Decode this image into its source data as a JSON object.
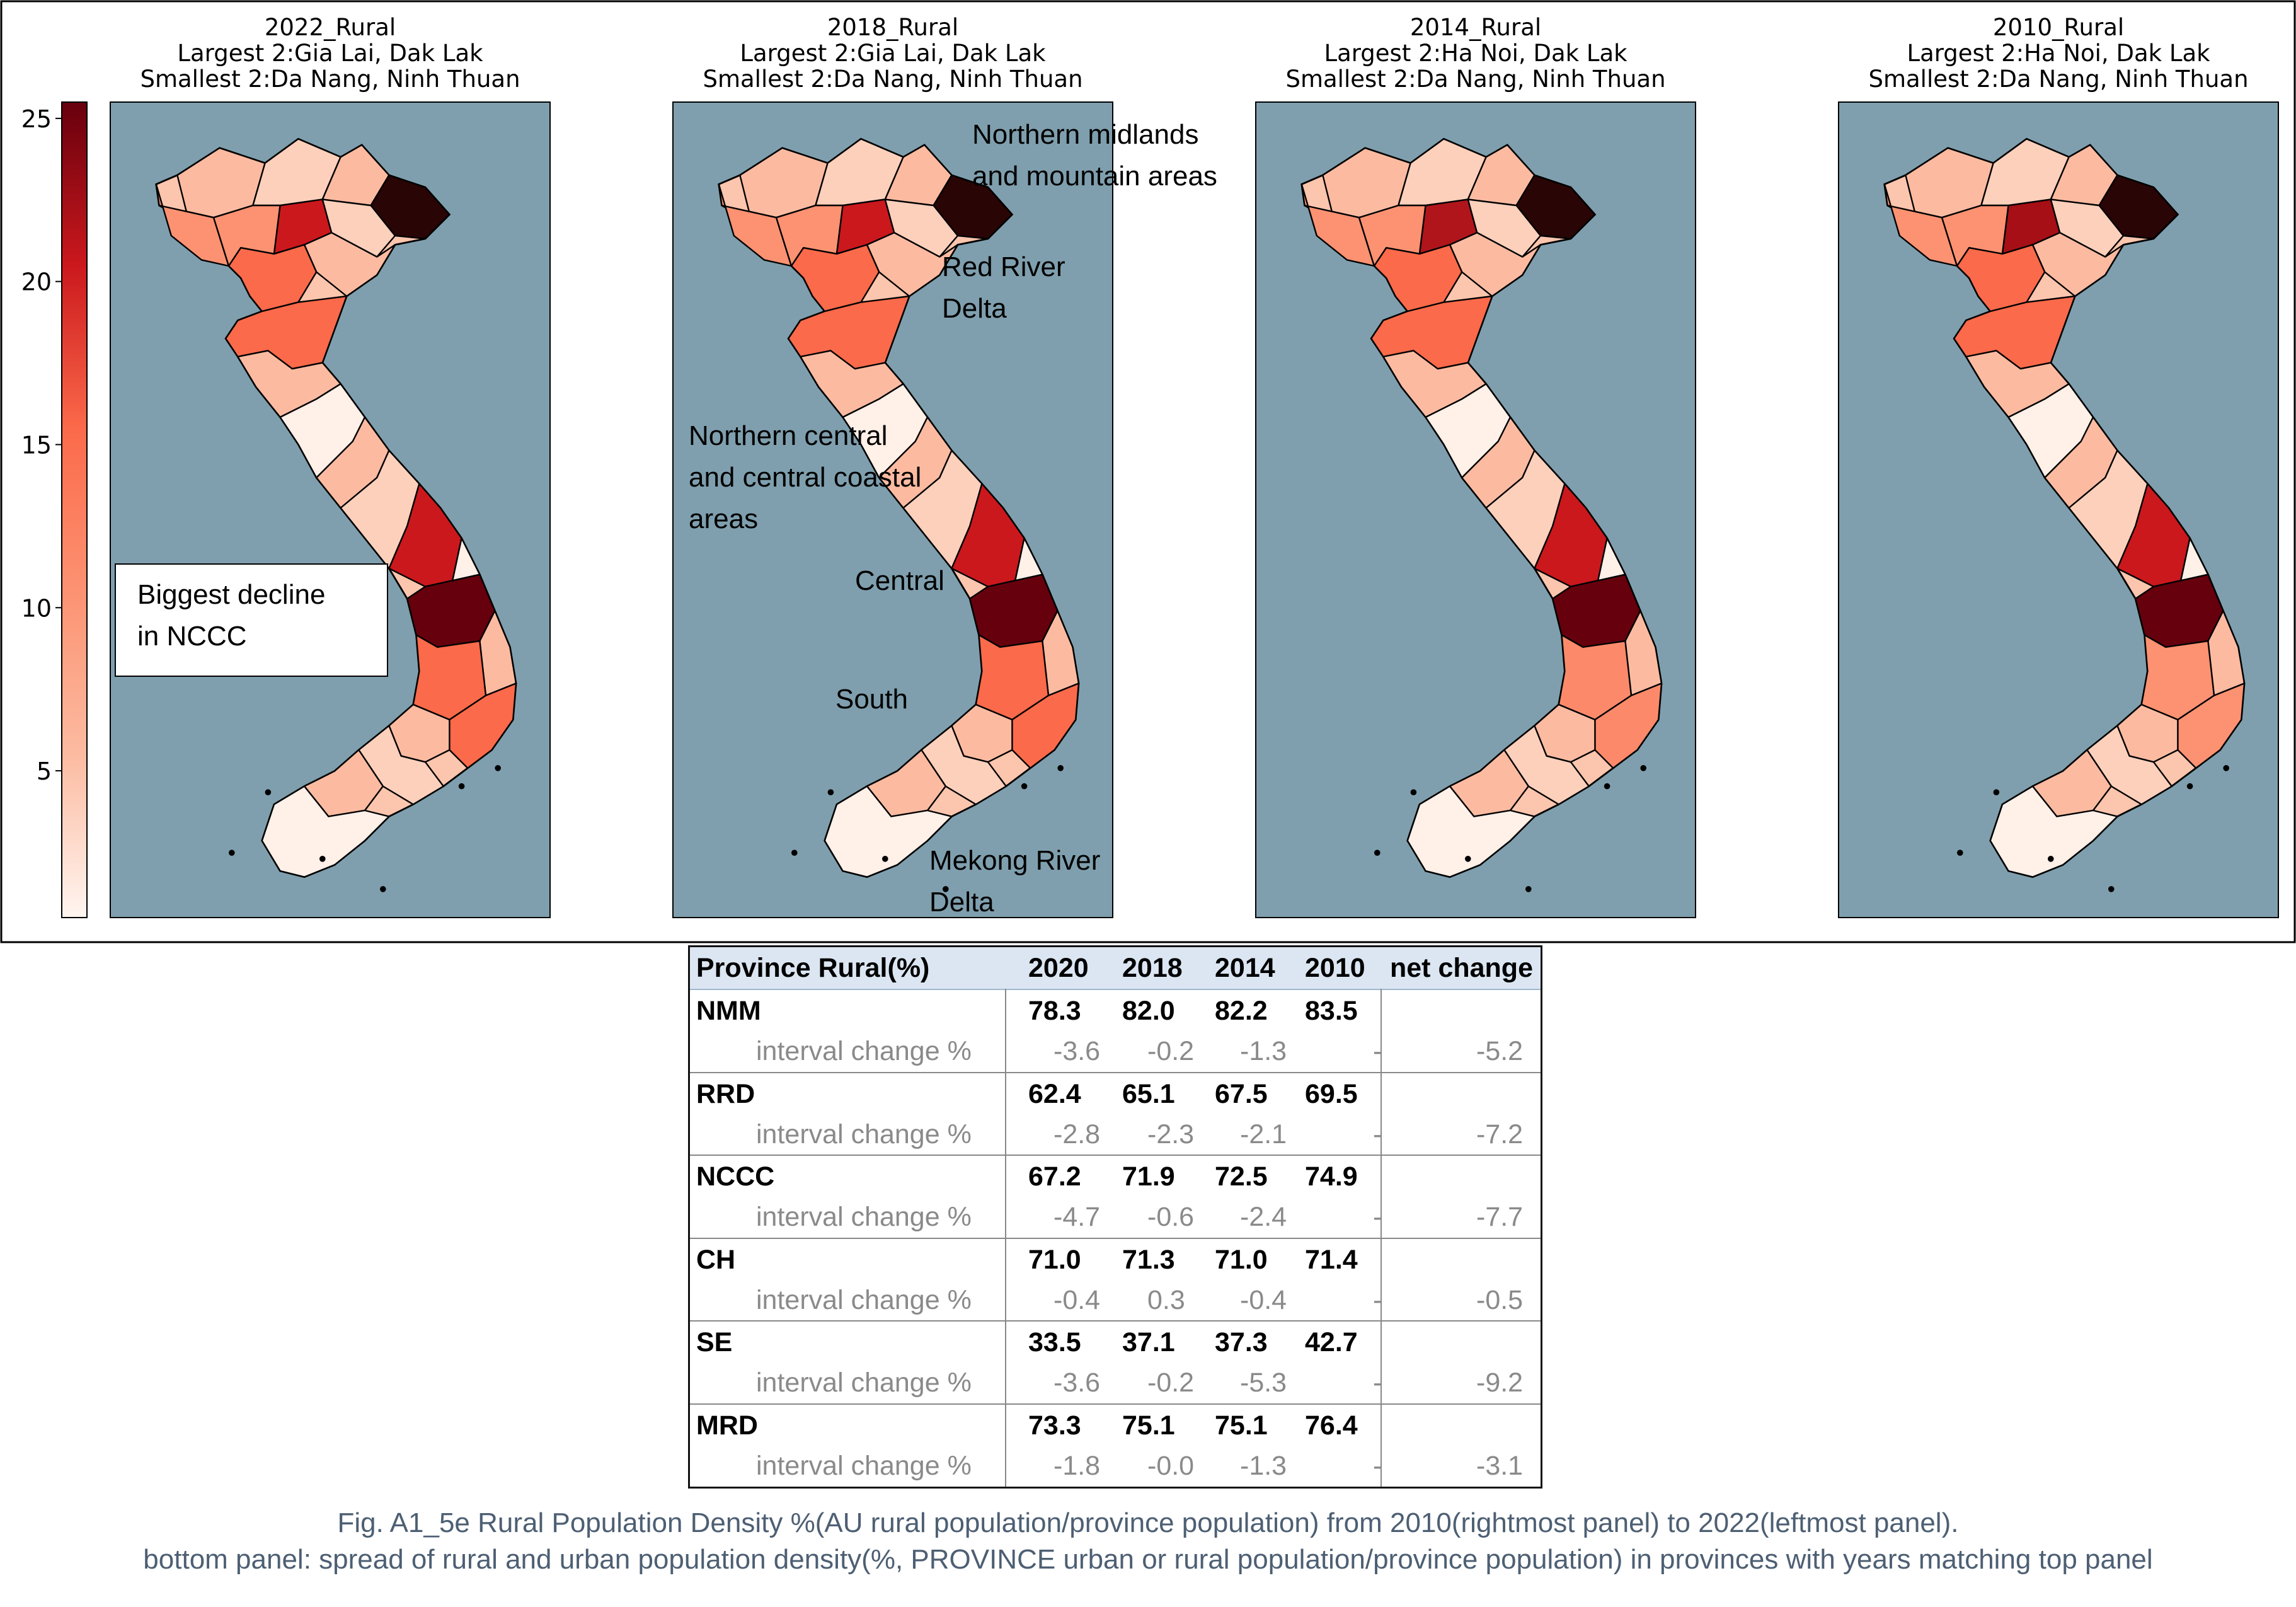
{
  "map_panels": [
    {
      "title": "2022_Rural",
      "largest": "Largest 2:Gia Lai, Dak Lak",
      "smallest": "Smallest 2:Da Nang, Ninh Thuan"
    },
    {
      "title": "2018_Rural",
      "largest": "Largest 2:Gia Lai, Dak Lak",
      "smallest": "Smallest 2:Da Nang, Ninh Thuan"
    },
    {
      "title": "2014_Rural",
      "largest": "Largest 2:Ha Noi, Dak Lak",
      "smallest": "Smallest 2:Da Nang, Ninh Thuan"
    },
    {
      "title": "2010_Rural",
      "largest": "Largest 2:Ha Noi, Dak Lak",
      "smallest": "Smallest 2:Da Nang, Ninh Thuan"
    }
  ],
  "colorbar": {
    "ticks": [
      "5",
      "10",
      "15",
      "20",
      "25"
    ],
    "min": 0.5,
    "max": 25.5
  },
  "colors": {
    "ocean": "#7f9fae",
    "scale_low": "#fff5f0",
    "scale_high": "#67000d"
  },
  "annotations": {
    "callout_line1": "Biggest decline",
    "callout_line2": "in NCCC",
    "nmm_line1": "Northern midlands",
    "nmm_line2": "and mountain areas",
    "rrd_line1": "Red River",
    "rrd_line2": "Delta",
    "nccc_line1": "Northern central",
    "nccc_line2": "and central coastal",
    "nccc_line3": "areas",
    "central": "Central",
    "south": "South",
    "mrd_line1": "Mekong River",
    "mrd_line2": "Delta"
  },
  "table": {
    "header": [
      "Province Rural(%)",
      "2020",
      "2018",
      "2014",
      "2010",
      "net change"
    ],
    "sub_label": "interval change %",
    "groups": [
      {
        "name": "NMM",
        "values": [
          "78.3",
          "82.0",
          "82.2",
          "83.5"
        ],
        "changes": [
          "-3.6",
          "-0.2",
          "-1.3",
          "-"
        ],
        "net": "-5.2"
      },
      {
        "name": "RRD",
        "values": [
          "62.4",
          "65.1",
          "67.5",
          "69.5"
        ],
        "changes": [
          "-2.8",
          "-2.3",
          "-2.1",
          "-"
        ],
        "net": "-7.2"
      },
      {
        "name": "NCCC",
        "values": [
          "67.2",
          "71.9",
          "72.5",
          "74.9"
        ],
        "changes": [
          "-4.7",
          "-0.6",
          "-2.4",
          "-"
        ],
        "net": "-7.7"
      },
      {
        "name": "CH",
        "values": [
          "71.0",
          "71.3",
          "71.0",
          "71.4"
        ],
        "changes": [
          "-0.4",
          "0.3",
          "-0.4",
          "-"
        ],
        "net": "-0.5"
      },
      {
        "name": "SE",
        "values": [
          "33.5",
          "37.1",
          "37.3",
          "42.7"
        ],
        "changes": [
          "-3.6",
          "-0.2",
          "-5.3",
          "-"
        ],
        "net": "-9.2"
      },
      {
        "name": "MRD",
        "values": [
          "73.3",
          "75.1",
          "75.1",
          "76.4"
        ],
        "changes": [
          "-1.8",
          "-0.0",
          "-1.3",
          "-"
        ],
        "net": "-3.1"
      }
    ]
  },
  "caption": {
    "line1": "Fig. A1_5e Rural Population Density %(AU rural population/province population) from 2010(rightmost panel) to 2022(leftmost panel).",
    "line2": "bottom panel: spread of rural and urban population density(%, PROVINCE urban or rural population/province population) in provinces with years matching top panel"
  }
}
